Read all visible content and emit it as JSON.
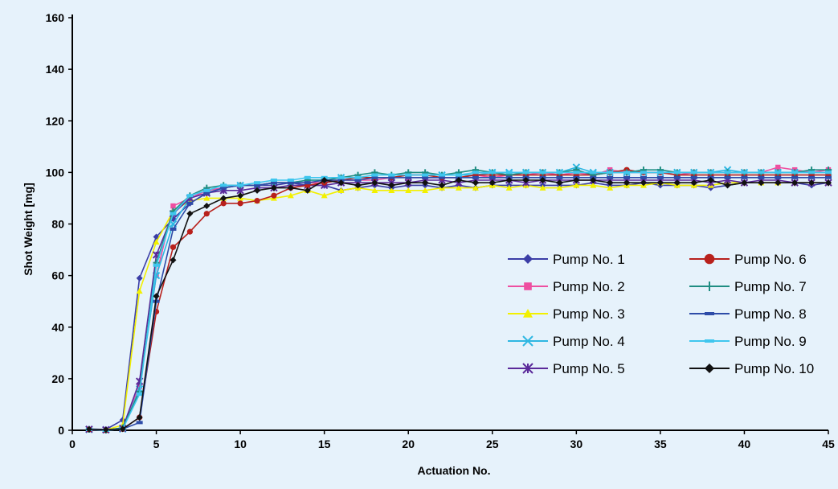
{
  "chart_data": {
    "type": "line",
    "title": "",
    "xlabel": "Actuation No.",
    "ylabel": "Shot Weight [mg]",
    "xlim": [
      0,
      45
    ],
    "ylim": [
      0,
      160
    ],
    "x_ticks": [
      0,
      5,
      10,
      15,
      20,
      25,
      30,
      35,
      40,
      45
    ],
    "y_ticks": [
      0,
      20,
      40,
      60,
      80,
      100,
      120,
      140,
      160
    ],
    "grid": false,
    "legend_position": "bottom-right, two columns",
    "x": [
      1,
      2,
      3,
      4,
      5,
      6,
      7,
      8,
      9,
      10,
      11,
      12,
      13,
      14,
      15,
      16,
      17,
      18,
      19,
      20,
      21,
      22,
      23,
      24,
      25,
      26,
      27,
      28,
      29,
      30,
      31,
      32,
      33,
      34,
      35,
      36,
      37,
      38,
      39,
      40,
      41,
      42,
      43,
      44,
      45
    ],
    "series": [
      {
        "name": "Pump No. 1",
        "color": "#3b3ea6",
        "marker": "diamond",
        "values": [
          0.5,
          0.3,
          4,
          59,
          75,
          82,
          88,
          92,
          94,
          95,
          95,
          95,
          96,
          95,
          95,
          93,
          94,
          95,
          94,
          95,
          95,
          94,
          95,
          94,
          95,
          95,
          95,
          95,
          95,
          95,
          96,
          95,
          95,
          96,
          95,
          95,
          95,
          94,
          95,
          96,
          96,
          96,
          96,
          95,
          96
        ]
      },
      {
        "name": "Pump No. 2",
        "color": "#ee4fa0",
        "marker": "square",
        "values": [
          0.2,
          0,
          1,
          17,
          60,
          87,
          90,
          93,
          94,
          95,
          95,
          96,
          96,
          96,
          96,
          97,
          97,
          97,
          98,
          98,
          98,
          98,
          98,
          99,
          98,
          99,
          99,
          100,
          99,
          100,
          99,
          101,
          100,
          100,
          100,
          99,
          100,
          100,
          100,
          100,
          100,
          102,
          101,
          100,
          101
        ]
      },
      {
        "name": "Pump No. 3",
        "color": "#f2f000",
        "marker": "triangle",
        "values": [
          0.3,
          0.2,
          2,
          54,
          73,
          85,
          89,
          90,
          90,
          90,
          89,
          90,
          91,
          93,
          91,
          93,
          94,
          93,
          93,
          93,
          93,
          94,
          94,
          94,
          95,
          94,
          95,
          94,
          94,
          95,
          95,
          94,
          95,
          95,
          96,
          95,
          95,
          95,
          96,
          96,
          96,
          96,
          96,
          96,
          96
        ]
      },
      {
        "name": "Pump No. 4",
        "color": "#2fb7e2",
        "marker": "x",
        "values": [
          0.3,
          0.2,
          0.5,
          16,
          60,
          80,
          90,
          92,
          94,
          95,
          95,
          96,
          96,
          97,
          97,
          98,
          98,
          98,
          98,
          99,
          99,
          99,
          99,
          99,
          100,
          100,
          100,
          100,
          100,
          102,
          100,
          100,
          100,
          100,
          100,
          100,
          100,
          100,
          101,
          100,
          100,
          100,
          100,
          100,
          100
        ]
      },
      {
        "name": "Pump No. 5",
        "color": "#5b2a9a",
        "marker": "star",
        "values": [
          0.4,
          0.2,
          0.8,
          19,
          68,
          84,
          90,
          92,
          93,
          93,
          94,
          94,
          95,
          95,
          95,
          96,
          96,
          96,
          96,
          96,
          97,
          97,
          96,
          97,
          97,
          97,
          96,
          97,
          97,
          97,
          97,
          97,
          97,
          97,
          97,
          97,
          97,
          96,
          97,
          96,
          97,
          97,
          96,
          96,
          96
        ]
      },
      {
        "name": "Pump No. 6",
        "color": "#b8211c",
        "marker": "circle",
        "values": [
          0.3,
          0,
          0.5,
          5,
          46,
          71,
          77,
          84,
          88,
          88,
          89,
          91,
          94,
          95,
          96,
          97,
          98,
          98,
          98,
          99,
          99,
          98,
          98,
          99,
          99,
          99,
          99,
          99,
          99,
          99,
          99,
          100,
          101,
          100,
          100,
          99,
          99,
          99,
          99,
          99,
          99,
          99,
          99,
          99,
          99
        ]
      },
      {
        "name": "Pump No. 7",
        "color": "#1f8d82",
        "marker": "plus",
        "values": [
          0.3,
          0,
          1,
          15,
          65,
          85,
          91,
          94,
          95,
          95,
          95,
          96,
          96,
          97,
          97,
          98,
          99,
          100,
          99,
          100,
          100,
          99,
          100,
          101,
          100,
          99,
          100,
          100,
          100,
          101,
          99,
          100,
          100,
          101,
          101,
          100,
          100,
          100,
          100,
          100,
          100,
          100,
          100,
          101,
          101
        ]
      },
      {
        "name": "Pump No. 8",
        "color": "#2e4ca8",
        "marker": "dash",
        "values": [
          0.3,
          0,
          0.5,
          3,
          50,
          78,
          88,
          92,
          94,
          95,
          95,
          96,
          96,
          96,
          97,
          97,
          97,
          98,
          98,
          98,
          98,
          98,
          98,
          98,
          98,
          98,
          98,
          98,
          98,
          98,
          98,
          98,
          98,
          98,
          98,
          98,
          98,
          98,
          98,
          98,
          98,
          98,
          98,
          98,
          98
        ]
      },
      {
        "name": "Pump No. 9",
        "color": "#3fc6ee",
        "marker": "dash",
        "values": [
          0.3,
          0,
          0.5,
          14,
          64,
          84,
          91,
          93,
          95,
          95,
          96,
          97,
          97,
          98,
          98,
          98,
          98,
          99,
          99,
          99,
          99,
          99,
          99,
          100,
          100,
          100,
          100,
          100,
          100,
          100,
          100,
          100,
          100,
          100,
          100,
          100,
          100,
          100,
          100,
          100,
          100,
          100,
          100,
          100,
          100
        ]
      },
      {
        "name": "Pump No. 10",
        "color": "#111111",
        "marker": "diamond",
        "values": [
          0.4,
          0.2,
          0.5,
          5,
          52,
          66,
          84,
          87,
          90,
          91,
          93,
          94,
          94,
          93,
          97,
          96,
          95,
          96,
          95,
          96,
          96,
          95,
          97,
          96,
          96,
          97,
          97,
          97,
          96,
          97,
          97,
          96,
          96,
          96,
          96,
          96,
          96,
          97,
          95,
          96,
          96,
          96,
          96,
          96,
          96
        ]
      }
    ]
  }
}
